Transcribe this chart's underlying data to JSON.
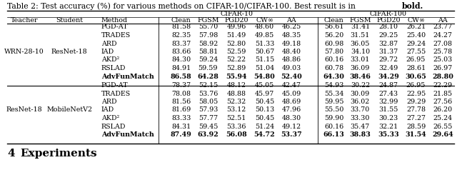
{
  "title_normal": "Table 2: Test accuracy (%) for various methods on CIFAR-10/CIFAR-100. Best result is in ",
  "title_bold": "bold.",
  "section1": {
    "teacher": "WRN-28-10",
    "student": "ResNet-18",
    "methods": [
      "PGD-AT",
      "TRADES",
      "ARD",
      "IAD",
      "AKD²",
      "RSLAD",
      "AdvFunMatch"
    ],
    "cifar10": [
      [
        81.58,
        55.7,
        49.96,
        48.6,
        46.25
      ],
      [
        82.35,
        57.98,
        51.49,
        49.85,
        48.35
      ],
      [
        83.37,
        58.92,
        52.8,
        51.33,
        49.18
      ],
      [
        83.66,
        58.81,
        52.59,
        50.67,
        48.4
      ],
      [
        84.3,
        59.24,
        52.22,
        51.15,
        48.86
      ],
      [
        84.91,
        59.59,
        52.89,
        51.04,
        49.03
      ],
      [
        86.58,
        64.28,
        55.94,
        54.8,
        52.4
      ]
    ],
    "cifar100": [
      [
        56.61,
        31.41,
        28.1,
        26.21,
        23.77
      ],
      [
        56.2,
        31.51,
        29.25,
        25.4,
        24.27
      ],
      [
        60.98,
        36.05,
        32.87,
        29.24,
        27.08
      ],
      [
        57.8,
        34.1,
        31.37,
        27.55,
        25.78
      ],
      [
        60.16,
        33.01,
        29.72,
        26.95,
        25.03
      ],
      [
        60.78,
        36.09,
        32.49,
        28.61,
        26.97
      ],
      [
        64.3,
        38.46,
        34.29,
        30.65,
        28.8
      ]
    ],
    "bold_row": 6
  },
  "section2": {
    "teacher": "ResNet-18",
    "student": "MobileNetV2",
    "methods": [
      "PGD-AT",
      "TRADES",
      "ARD",
      "IAD",
      "AKD²",
      "RSLAD",
      "AdvFunMatch"
    ],
    "cifar10": [
      [
        78.37,
        52.15,
        48.12,
        45.05,
        42.47
      ],
      [
        78.08,
        53.76,
        48.88,
        45.97,
        45.09
      ],
      [
        81.56,
        58.05,
        52.32,
        50.45,
        48.69
      ],
      [
        81.69,
        57.93,
        53.12,
        50.13,
        47.96
      ],
      [
        83.33,
        57.77,
        52.51,
        50.45,
        48.3
      ],
      [
        84.31,
        59.45,
        53.36,
        51.24,
        49.12
      ],
      [
        87.49,
        63.92,
        56.08,
        54.72,
        53.37
      ]
    ],
    "cifar100": [
      [
        54.93,
        30.22,
        24.87,
        26.95,
        22.29
      ],
      [
        55.34,
        30.09,
        27.43,
        22.95,
        21.85
      ],
      [
        59.95,
        36.02,
        32.99,
        29.29,
        27.56
      ],
      [
        55.5,
        33.7,
        31.55,
        27.78,
        26.2
      ],
      [
        59.9,
        33.3,
        30.23,
        27.27,
        25.24
      ],
      [
        60.16,
        35.47,
        32.21,
        28.59,
        26.55
      ],
      [
        66.13,
        38.83,
        35.33,
        31.54,
        29.64
      ]
    ],
    "bold_row": 6
  },
  "footer_num": "4",
  "footer_text": "Experiments",
  "bg_color": "#ffffff",
  "fs": 6.8,
  "fs_title": 7.8,
  "fs_footer_num": 11.0,
  "fs_footer_text": 11.0
}
